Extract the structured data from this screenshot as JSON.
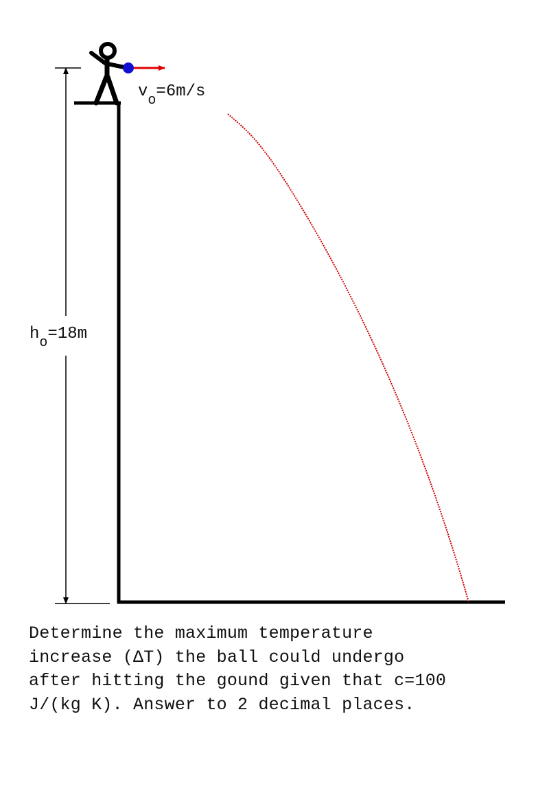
{
  "colors": {
    "ink": "#000000",
    "trajectory": "#cc0000",
    "velocity_arrow": "#e00000",
    "ball": "#1010d0"
  },
  "labels": {
    "velocity": {
      "symbol": "v",
      "subscript": "o",
      "value": "=6m/s"
    },
    "height": {
      "symbol": "h",
      "subscript": "o",
      "value": "=18m"
    }
  },
  "question": {
    "lines": [
      "Determine the maximum temperature",
      "increase (ΔT) the ball could undergo",
      "after hitting the gound given that c=100",
      "J/(kg K). Answer to 2 decimal places."
    ]
  }
}
